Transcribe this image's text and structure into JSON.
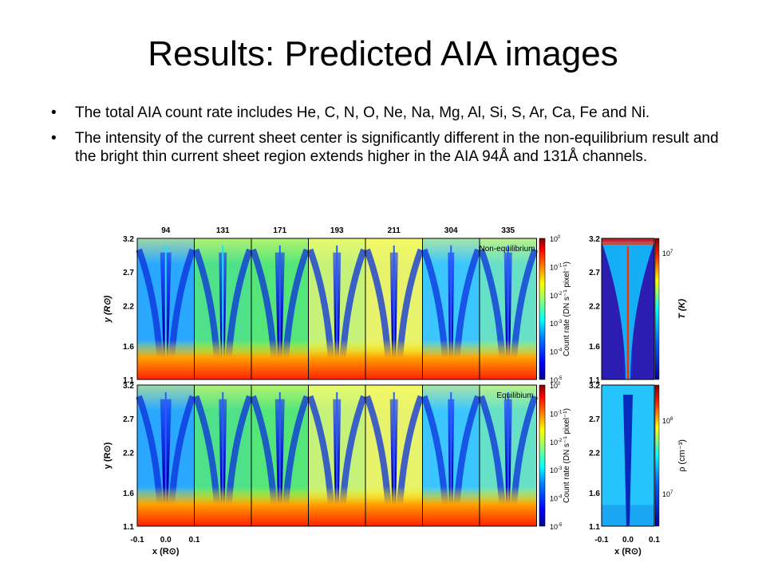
{
  "slide": {
    "title": "Results: Predicted AIA images",
    "bullets": [
      "The total AIA count rate includes He, C, N, O, Ne, Na, Mg, Al, Si, S, Ar, Ca, Fe and Ni.",
      " The intensity of the current sheet center is significantly different in the non-equilibrium result and the bright thin current sheet region extends higher in the AIA 94Å and 131Å channels."
    ]
  },
  "chart_data": [
    {
      "type": "heatmap",
      "channels": [
        "94",
        "131",
        "171",
        "193",
        "211",
        "304",
        "335"
      ],
      "rows": [
        {
          "label": "Non-equilibrium"
        },
        {
          "label": "Equilibium"
        }
      ],
      "y_ticks": [
        "3.2",
        "2.7",
        "2.2",
        "1.6",
        "1.1"
      ],
      "y_range": [
        1.1,
        3.2
      ],
      "x_ticks": [
        "-0.1",
        "0.0",
        "0.1"
      ],
      "x_range": [
        -0.1,
        0.1
      ],
      "ylabel_top": "y (R⊙)",
      "ylabel_bottom": "y (R⊙)",
      "xlabel": "x (R⊙)",
      "colorbar": {
        "label": "Count rate (DN s⁻¹ pixel⁻¹)",
        "tick_exponents": [
          "0",
          "-1",
          "-2",
          "-3",
          "-4",
          "-5"
        ],
        "tick_base": "10",
        "log_range": [
          -5,
          0
        ]
      }
    },
    {
      "type": "heatmap",
      "panels": [
        {
          "quantity": "T (K)",
          "colorbar_ticks": [
            {
              "base": "10",
              "exp": "7"
            }
          ]
        },
        {
          "quantity": "ρ (cm⁻³)",
          "colorbar_ticks": [
            {
              "base": "10",
              "exp": "8"
            },
            {
              "base": "10",
              "exp": "7"
            }
          ]
        }
      ],
      "y_ticks": [
        "3.2",
        "2.7",
        "2.2",
        "1.6",
        "1.1"
      ],
      "x_ticks": [
        "-0.1",
        "0.0",
        "0.1"
      ],
      "xlabel": "x (R⊙)"
    }
  ],
  "colors": {
    "jet": [
      "#00008f",
      "#0000ff",
      "#0080ff",
      "#00ffff",
      "#80ff80",
      "#ffff00",
      "#ff8000",
      "#ff0000",
      "#800000"
    ]
  }
}
